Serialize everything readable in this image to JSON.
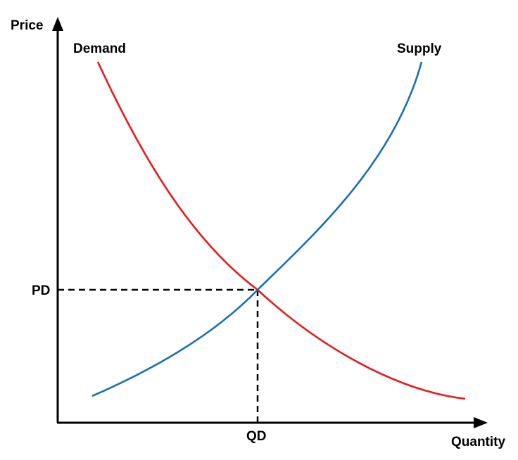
{
  "axes": {
    "y_label": "Price",
    "x_label": "Quantity"
  },
  "curves": {
    "demand": {
      "label": "Demand",
      "color": "#e8191f"
    },
    "supply": {
      "label": "Supply",
      "color": "#1a6fb0"
    }
  },
  "equilibrium": {
    "price_label": "PD",
    "quantity_label": "QD"
  },
  "colors": {
    "axis": "#000000",
    "guide": "#000000"
  }
}
